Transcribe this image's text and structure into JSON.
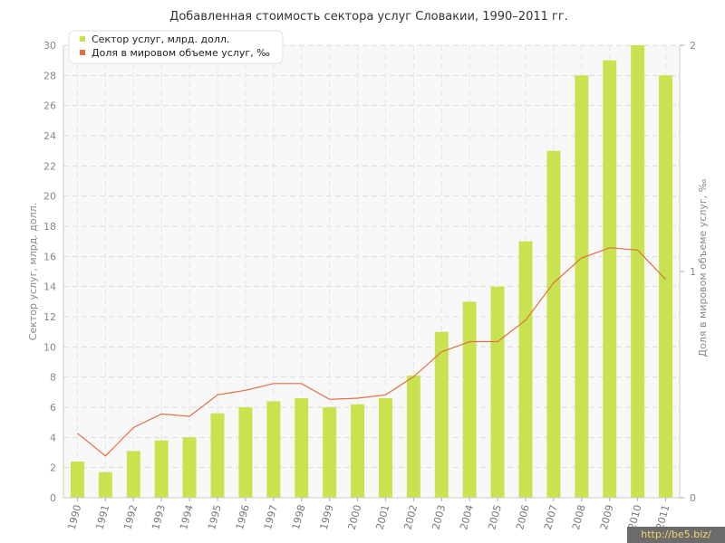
{
  "chart_data": {
    "type": "bar",
    "title": "Добавленная стоимость сектора услуг Словакии, 1990–2011 гг.",
    "categories": [
      "1990",
      "1991",
      "1992",
      "1993",
      "1994",
      "1995",
      "1996",
      "1997",
      "1998",
      "1999",
      "2000",
      "2001",
      "2002",
      "2003",
      "2004",
      "2005",
      "2006",
      "2007",
      "2008",
      "2009",
      "2010",
      "2011"
    ],
    "series": [
      {
        "name": "Сектор услуг, млрд. долл.",
        "type": "bar",
        "axis": "left",
        "color": "#c8e34f",
        "values": [
          2.4,
          1.7,
          3.1,
          3.8,
          4.0,
          5.6,
          6.0,
          6.4,
          6.6,
          6.0,
          6.2,
          6.6,
          8.1,
          11.0,
          13.0,
          14.0,
          17.0,
          23.0,
          28.0,
          29.0,
          30.0,
          28.0
        ]
      },
      {
        "name": "Доля в мировом объеме услуг, ‰",
        "type": "line",
        "axis": "right",
        "color": "#e07040",
        "values": [
          0.285,
          0.185,
          0.31,
          0.37,
          0.36,
          0.455,
          0.475,
          0.505,
          0.505,
          0.435,
          0.44,
          0.455,
          0.535,
          0.645,
          0.69,
          0.69,
          0.785,
          0.95,
          1.06,
          1.105,
          1.095,
          0.965
        ]
      }
    ],
    "ylabel": "Сектор услуг, млрд. долл.",
    "ylabel_right": "Доля в мировом объеме услуг, ‰",
    "ylim": [
      0,
      30
    ],
    "yticks": [
      "0",
      "2",
      "4",
      "6",
      "8",
      "10",
      "12",
      "14",
      "16",
      "18",
      "20",
      "22",
      "24",
      "26",
      "28",
      "30"
    ],
    "ylim_right": [
      0,
      2
    ],
    "yticks_right": [
      "0",
      "1",
      "2"
    ],
    "grid": true,
    "legend_position": "top-left"
  },
  "watermark": "http://be5.biz/"
}
